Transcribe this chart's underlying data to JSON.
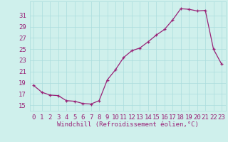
{
  "x": [
    0,
    1,
    2,
    3,
    4,
    5,
    6,
    7,
    8,
    9,
    10,
    11,
    12,
    13,
    14,
    15,
    16,
    17,
    18,
    19,
    20,
    21,
    22,
    23
  ],
  "y": [
    18.5,
    17.3,
    16.8,
    16.7,
    15.8,
    15.7,
    15.3,
    15.2,
    15.8,
    19.5,
    21.3,
    23.5,
    24.7,
    25.2,
    26.3,
    27.5,
    28.5,
    30.2,
    32.2,
    32.1,
    31.8,
    31.9,
    25.0,
    22.3
  ],
  "line_color": "#992277",
  "marker": "+",
  "bg_color": "#cff0ec",
  "grid_color": "#aadddd",
  "xlabel": "Windchill (Refroidissement éolien,°C)",
  "ylabel_ticks": [
    15,
    17,
    19,
    21,
    23,
    25,
    27,
    29,
    31
  ],
  "ylim": [
    14.0,
    33.5
  ],
  "xlim": [
    -0.5,
    23.5
  ],
  "tick_color": "#992277",
  "label_color": "#992277",
  "font_size": 6.5,
  "xlabel_fontsize": 6.5,
  "linewidth": 0.9,
  "markersize": 3.0
}
